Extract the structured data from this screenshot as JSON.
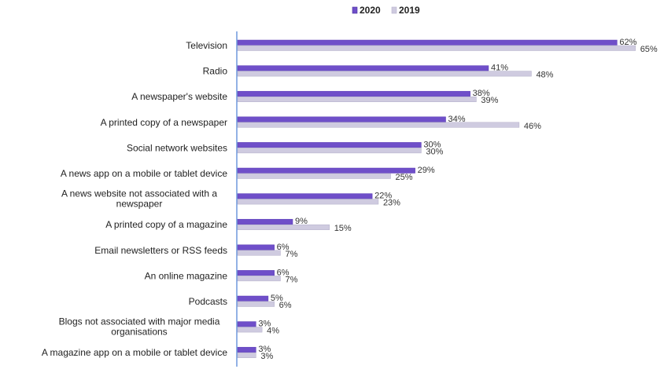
{
  "chart_data": {
    "type": "bar",
    "orientation": "horizontal",
    "title": "",
    "xlabel": "",
    "ylabel": "",
    "xlim": [
      0,
      70
    ],
    "grid": false,
    "legend_position": "top",
    "categories": [
      [
        "Television"
      ],
      [
        "Radio"
      ],
      [
        "A newspaper's website"
      ],
      [
        "A printed copy of a newspaper"
      ],
      [
        "Social network websites"
      ],
      [
        "A news app on a mobile or tablet device"
      ],
      [
        "A news website not associated with a",
        "newspaper"
      ],
      [
        "A printed copy of a magazine"
      ],
      [
        "Email newsletters or RSS feeds"
      ],
      [
        "An online magazine"
      ],
      [
        "Podcasts"
      ],
      [
        "Blogs not associated with major media",
        "organisations"
      ],
      [
        "A magazine app on a mobile or tablet device"
      ]
    ],
    "series": [
      {
        "name": "2020",
        "color": "#6f4fc9",
        "values": [
          62,
          41,
          38,
          34,
          30,
          29,
          22,
          9,
          6,
          6,
          5,
          3,
          3
        ],
        "labels": [
          "62%",
          "41%",
          "38%",
          "34%",
          "30%",
          "29%",
          "22%",
          "9%",
          "6%",
          "6%",
          "5%",
          "3%",
          "3%"
        ]
      },
      {
        "name": "2019",
        "color": "#cfcbe0",
        "values": [
          65,
          48,
          39,
          46,
          30,
          25,
          23,
          15,
          7,
          7,
          6,
          4,
          3
        ],
        "labels": [
          "65%",
          "48%",
          "39%",
          "46%",
          "30%",
          "25%",
          "23%",
          "15%",
          "7%",
          "7%",
          "6%",
          "4%",
          "3%"
        ]
      }
    ],
    "axis_color": "#4a7fd4"
  }
}
